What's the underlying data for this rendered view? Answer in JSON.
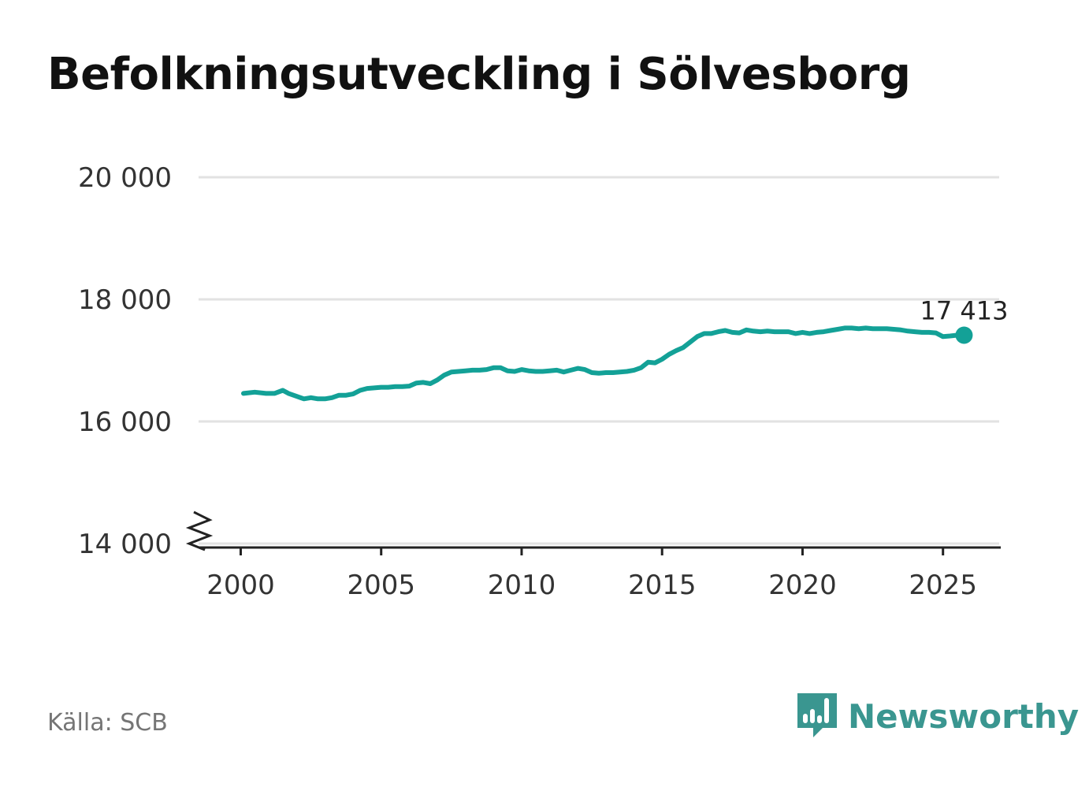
{
  "title": "Befolkningsutveckling i Sölvesborg",
  "source": "Källa: SCB",
  "brand": {
    "name": "Newsworthy",
    "icon": "newsworthy-logo-icon",
    "color": "#3a9690"
  },
  "chart_data": {
    "type": "line",
    "title": "Befolkningsutveckling i Sölvesborg",
    "xlabel": "",
    "ylabel": "",
    "xlim": [
      1998.5,
      2027
    ],
    "ylim": [
      14000,
      20000
    ],
    "y_axis_break": true,
    "grid": "horizontal",
    "yticks": [
      14000,
      16000,
      18000,
      20000
    ],
    "ytick_labels": [
      "14 000",
      "16 000",
      "18 000",
      "20 000"
    ],
    "xticks": [
      2000,
      2005,
      2010,
      2015,
      2020,
      2025
    ],
    "xtick_labels": [
      "2000",
      "2005",
      "2010",
      "2015",
      "2020",
      "2025"
    ],
    "line_color": "#13a197",
    "series": [
      {
        "x": [
          2000.1,
          2000.5,
          2000.9,
          2001.2,
          2001.5,
          2001.7,
          2002.0,
          2002.25,
          2002.5,
          2002.75,
          2003.0,
          2003.25,
          2003.5,
          2003.75,
          2004.0,
          2004.25,
          2004.5,
          2004.75,
          2005.0,
          2005.25,
          2005.5,
          2005.75,
          2006.0,
          2006.25,
          2006.5,
          2006.75,
          2007.0,
          2007.25,
          2007.5,
          2007.75,
          2008.0,
          2008.25,
          2008.5,
          2008.75,
          2009.0,
          2009.25,
          2009.5,
          2009.75,
          2010.0,
          2010.25,
          2010.5,
          2010.75,
          2011.0,
          2011.25,
          2011.5,
          2011.75,
          2012.0,
          2012.25,
          2012.5,
          2012.75,
          2013.0,
          2013.25,
          2013.5,
          2013.75,
          2014.0,
          2014.25,
          2014.5,
          2014.75,
          2015.0,
          2015.25,
          2015.5,
          2015.75,
          2016.0,
          2016.25,
          2016.5,
          2016.75,
          2017.0,
          2017.25,
          2017.5,
          2017.75,
          2018.0,
          2018.25,
          2018.5,
          2018.75,
          2019.0,
          2019.25,
          2019.5,
          2019.75,
          2020.0,
          2020.25,
          2020.5,
          2020.75,
          2021.0,
          2021.25,
          2021.5,
          2021.75,
          2022.0,
          2022.25,
          2022.5,
          2022.75,
          2023.0,
          2023.25,
          2023.5,
          2023.75,
          2024.0,
          2024.25,
          2024.5,
          2024.75,
          2025.0,
          2025.25,
          2025.5,
          2025.75
        ],
        "values": [
          16460,
          16480,
          16460,
          16460,
          16510,
          16460,
          16410,
          16370,
          16390,
          16370,
          16370,
          16390,
          16430,
          16430,
          16450,
          16510,
          16540,
          16550,
          16560,
          16560,
          16570,
          16570,
          16580,
          16630,
          16640,
          16620,
          16680,
          16760,
          16810,
          16820,
          16830,
          16840,
          16840,
          16850,
          16880,
          16880,
          16830,
          16820,
          16850,
          16830,
          16820,
          16820,
          16830,
          16840,
          16810,
          16840,
          16870,
          16850,
          16800,
          16790,
          16800,
          16800,
          16810,
          16820,
          16840,
          16880,
          16970,
          16960,
          17020,
          17100,
          17160,
          17210,
          17300,
          17390,
          17440,
          17440,
          17470,
          17490,
          17460,
          17450,
          17500,
          17480,
          17470,
          17480,
          17470,
          17470,
          17470,
          17440,
          17460,
          17440,
          17460,
          17470,
          17490,
          17510,
          17530,
          17530,
          17520,
          17530,
          17520,
          17520,
          17520,
          17510,
          17500,
          17480,
          17470,
          17460,
          17460,
          17450,
          17390,
          17400,
          17413,
          17413
        ]
      }
    ],
    "annotation": {
      "x": 2025.75,
      "value": 17413,
      "label": "17 413"
    }
  }
}
